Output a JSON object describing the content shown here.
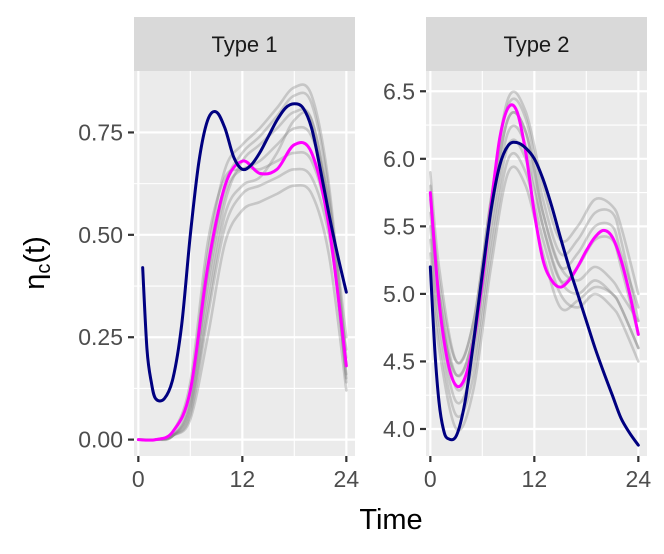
{
  "chart_data": {
    "type": "line",
    "xlabel": "Time",
    "ylabel": "ηc(t)",
    "ylabel_main": "η",
    "ylabel_sub": "c",
    "ylabel_tail": "(t)",
    "colors": {
      "background_curves": "#808080",
      "mean_curve": "#ff00ff",
      "highlight_curve": "#000080"
    },
    "panels": [
      {
        "title": "Type 1",
        "xlim": [
          -0.5,
          25
        ],
        "ylim": [
          -0.04,
          0.9
        ],
        "xticks": [
          0,
          12,
          24
        ],
        "yticks": [
          0.0,
          0.25,
          0.5,
          0.75
        ],
        "ytick_labels": [
          "0.00",
          "0.25",
          "0.50",
          "0.75"
        ],
        "grey_curves": [
          {
            "x": [
              0,
              2,
              4,
              6,
              8,
              10,
              12,
              14,
              16,
              18,
              20,
              22,
              24
            ],
            "y": [
              0.0,
              0.0,
              0.01,
              0.08,
              0.35,
              0.58,
              0.68,
              0.72,
              0.76,
              0.8,
              0.78,
              0.55,
              0.15
            ]
          },
          {
            "x": [
              0,
              2,
              4,
              6,
              8,
              10,
              12,
              14,
              16,
              18,
              20,
              22,
              24
            ],
            "y": [
              0.0,
              0.0,
              0.01,
              0.1,
              0.4,
              0.62,
              0.7,
              0.74,
              0.79,
              0.84,
              0.82,
              0.6,
              0.18
            ]
          },
          {
            "x": [
              0,
              2,
              4,
              6,
              8,
              10,
              12,
              14,
              16,
              18,
              20,
              22,
              24
            ],
            "y": [
              0.0,
              0.0,
              0.02,
              0.12,
              0.45,
              0.66,
              0.72,
              0.76,
              0.81,
              0.86,
              0.84,
              0.62,
              0.2
            ]
          },
          {
            "x": [
              0,
              2,
              4,
              6,
              8,
              10,
              12,
              14,
              16,
              18,
              20,
              22,
              24
            ],
            "y": [
              0.0,
              0.0,
              0.01,
              0.06,
              0.3,
              0.52,
              0.6,
              0.62,
              0.64,
              0.66,
              0.64,
              0.5,
              0.22
            ]
          },
          {
            "x": [
              0,
              2,
              4,
              6,
              8,
              10,
              12,
              14,
              16,
              18,
              20,
              22,
              24
            ],
            "y": [
              0.0,
              0.0,
              0.01,
              0.05,
              0.25,
              0.48,
              0.56,
              0.58,
              0.6,
              0.62,
              0.6,
              0.45,
              0.12
            ]
          },
          {
            "x": [
              0,
              2,
              4,
              6,
              8,
              10,
              12,
              14,
              16,
              18,
              20,
              22,
              24
            ],
            "y": [
              0.0,
              0.0,
              0.02,
              0.14,
              0.48,
              0.64,
              0.66,
              0.68,
              0.72,
              0.76,
              0.74,
              0.58,
              0.25
            ]
          },
          {
            "x": [
              0,
              2,
              4,
              6,
              8,
              10,
              12,
              14,
              16,
              18,
              20,
              22,
              24
            ],
            "y": [
              0.0,
              0.0,
              0.01,
              0.09,
              0.38,
              0.6,
              0.66,
              0.66,
              0.68,
              0.7,
              0.68,
              0.52,
              0.16
            ]
          },
          {
            "x": [
              0,
              2,
              4,
              6,
              8,
              10,
              12,
              14,
              16,
              18,
              20,
              22,
              24
            ],
            "y": [
              0.0,
              0.0,
              0.01,
              0.07,
              0.32,
              0.55,
              0.62,
              0.64,
              0.7,
              0.78,
              0.78,
              0.56,
              0.14
            ]
          }
        ],
        "mean_curve": {
          "x": [
            0,
            2,
            4,
            6,
            8,
            10,
            12,
            14,
            16,
            18,
            20,
            22,
            24
          ],
          "y": [
            0.0,
            0.0,
            0.02,
            0.12,
            0.42,
            0.62,
            0.68,
            0.65,
            0.66,
            0.72,
            0.7,
            0.52,
            0.18
          ]
        },
        "highlight_curve": {
          "x": [
            0.5,
            1,
            1.5,
            2,
            3,
            4,
            5,
            6,
            7,
            8,
            9,
            10,
            11,
            12,
            13,
            14,
            15,
            16,
            17,
            18,
            19,
            20,
            21,
            22,
            23,
            24
          ],
          "y": [
            0.42,
            0.22,
            0.14,
            0.1,
            0.1,
            0.15,
            0.28,
            0.5,
            0.68,
            0.78,
            0.8,
            0.76,
            0.69,
            0.66,
            0.67,
            0.7,
            0.74,
            0.78,
            0.81,
            0.82,
            0.81,
            0.76,
            0.66,
            0.55,
            0.45,
            0.36
          ]
        }
      },
      {
        "title": "Type 2",
        "xlim": [
          -0.5,
          25
        ],
        "ylim": [
          3.8,
          6.65
        ],
        "xticks": [
          0,
          12,
          24
        ],
        "yticks": [
          4.0,
          4.5,
          5.0,
          5.5,
          6.0,
          6.5
        ],
        "ytick_labels": [
          "4.0",
          "4.5",
          "5.0",
          "5.5",
          "6.0",
          "6.5"
        ],
        "grey_curves": [
          {
            "x": [
              0,
              1,
              3,
              5,
              7,
              9,
              11,
              13,
              15,
              17,
              19,
              21,
              22,
              24
            ],
            "y": [
              5.6,
              5.0,
              4.4,
              4.7,
              5.6,
              6.3,
              6.2,
              5.6,
              5.2,
              5.3,
              5.5,
              5.5,
              5.3,
              4.9
            ]
          },
          {
            "x": [
              0,
              1,
              3,
              5,
              7,
              9,
              11,
              13,
              15,
              17,
              19,
              21,
              22,
              24
            ],
            "y": [
              5.8,
              5.1,
              4.5,
              4.8,
              5.7,
              6.4,
              6.3,
              5.7,
              5.3,
              5.4,
              5.6,
              5.6,
              5.4,
              4.8
            ]
          },
          {
            "x": [
              0,
              1,
              3,
              5,
              7,
              9,
              11,
              13,
              15,
              17,
              19,
              21,
              22,
              24
            ],
            "y": [
              5.4,
              4.8,
              4.2,
              4.5,
              5.4,
              6.1,
              6.0,
              5.5,
              5.1,
              5.0,
              5.1,
              5.0,
              4.9,
              4.6
            ]
          },
          {
            "x": [
              0,
              1,
              3,
              5,
              7,
              9,
              11,
              13,
              15,
              17,
              19,
              21,
              22,
              24
            ],
            "y": [
              5.7,
              5.0,
              4.3,
              4.6,
              5.5,
              6.2,
              6.1,
              5.5,
              5.1,
              5.2,
              5.4,
              5.4,
              5.2,
              4.7
            ]
          },
          {
            "x": [
              0,
              1,
              3,
              5,
              7,
              9,
              11,
              13,
              15,
              17,
              19,
              21,
              22,
              24
            ],
            "y": [
              5.3,
              4.7,
              4.1,
              4.4,
              5.3,
              6.0,
              5.9,
              5.4,
              5.0,
              4.9,
              5.0,
              4.9,
              4.8,
              4.5
            ]
          },
          {
            "x": [
              0,
              1,
              3,
              5,
              7,
              9,
              11,
              13,
              15,
              17,
              19,
              21,
              22,
              24
            ],
            "y": [
              5.5,
              4.9,
              4.4,
              4.7,
              5.6,
              6.3,
              6.2,
              5.6,
              5.2,
              5.1,
              5.2,
              5.1,
              5.0,
              4.8
            ]
          },
          {
            "x": [
              0,
              1,
              3,
              5,
              7,
              9,
              11,
              13,
              15,
              17,
              19,
              21,
              22,
              24
            ],
            "y": [
              5.9,
              5.2,
              4.5,
              4.8,
              5.7,
              6.45,
              6.35,
              5.8,
              5.4,
              5.5,
              5.7,
              5.65,
              5.5,
              5.0
            ]
          },
          {
            "x": [
              0,
              1,
              3,
              5,
              7,
              9,
              11,
              13,
              15,
              17,
              19,
              21,
              22,
              24
            ],
            "y": [
              5.2,
              4.6,
              4.0,
              4.3,
              5.2,
              5.9,
              5.8,
              5.3,
              4.9,
              4.95,
              5.05,
              5.0,
              4.9,
              4.6
            ]
          }
        ],
        "mean_curve": {
          "x": [
            0,
            1,
            2,
            3,
            4,
            5,
            6,
            7,
            8,
            9,
            10,
            11,
            12,
            13,
            14,
            15,
            16,
            17,
            18,
            19,
            20,
            21,
            22,
            23,
            24
          ],
          "y": [
            5.75,
            4.95,
            4.5,
            4.32,
            4.38,
            4.65,
            5.1,
            5.65,
            6.15,
            6.38,
            6.35,
            6.05,
            5.6,
            5.25,
            5.1,
            5.05,
            5.1,
            5.2,
            5.32,
            5.42,
            5.47,
            5.42,
            5.25,
            5.0,
            4.7
          ]
        },
        "highlight_curve": {
          "x": [
            0,
            0.5,
            1,
            1.5,
            2,
            3,
            4,
            5,
            6,
            7,
            8,
            9,
            10,
            11,
            12,
            13,
            14,
            15,
            16,
            17,
            18,
            19,
            20,
            21,
            22,
            23,
            24
          ],
          "y": [
            5.2,
            4.6,
            4.2,
            4.0,
            3.93,
            3.95,
            4.2,
            4.65,
            5.15,
            5.62,
            5.95,
            6.1,
            6.12,
            6.08,
            6.0,
            5.85,
            5.65,
            5.42,
            5.2,
            5.0,
            4.8,
            4.6,
            4.42,
            4.25,
            4.08,
            3.97,
            3.88
          ]
        }
      }
    ]
  }
}
